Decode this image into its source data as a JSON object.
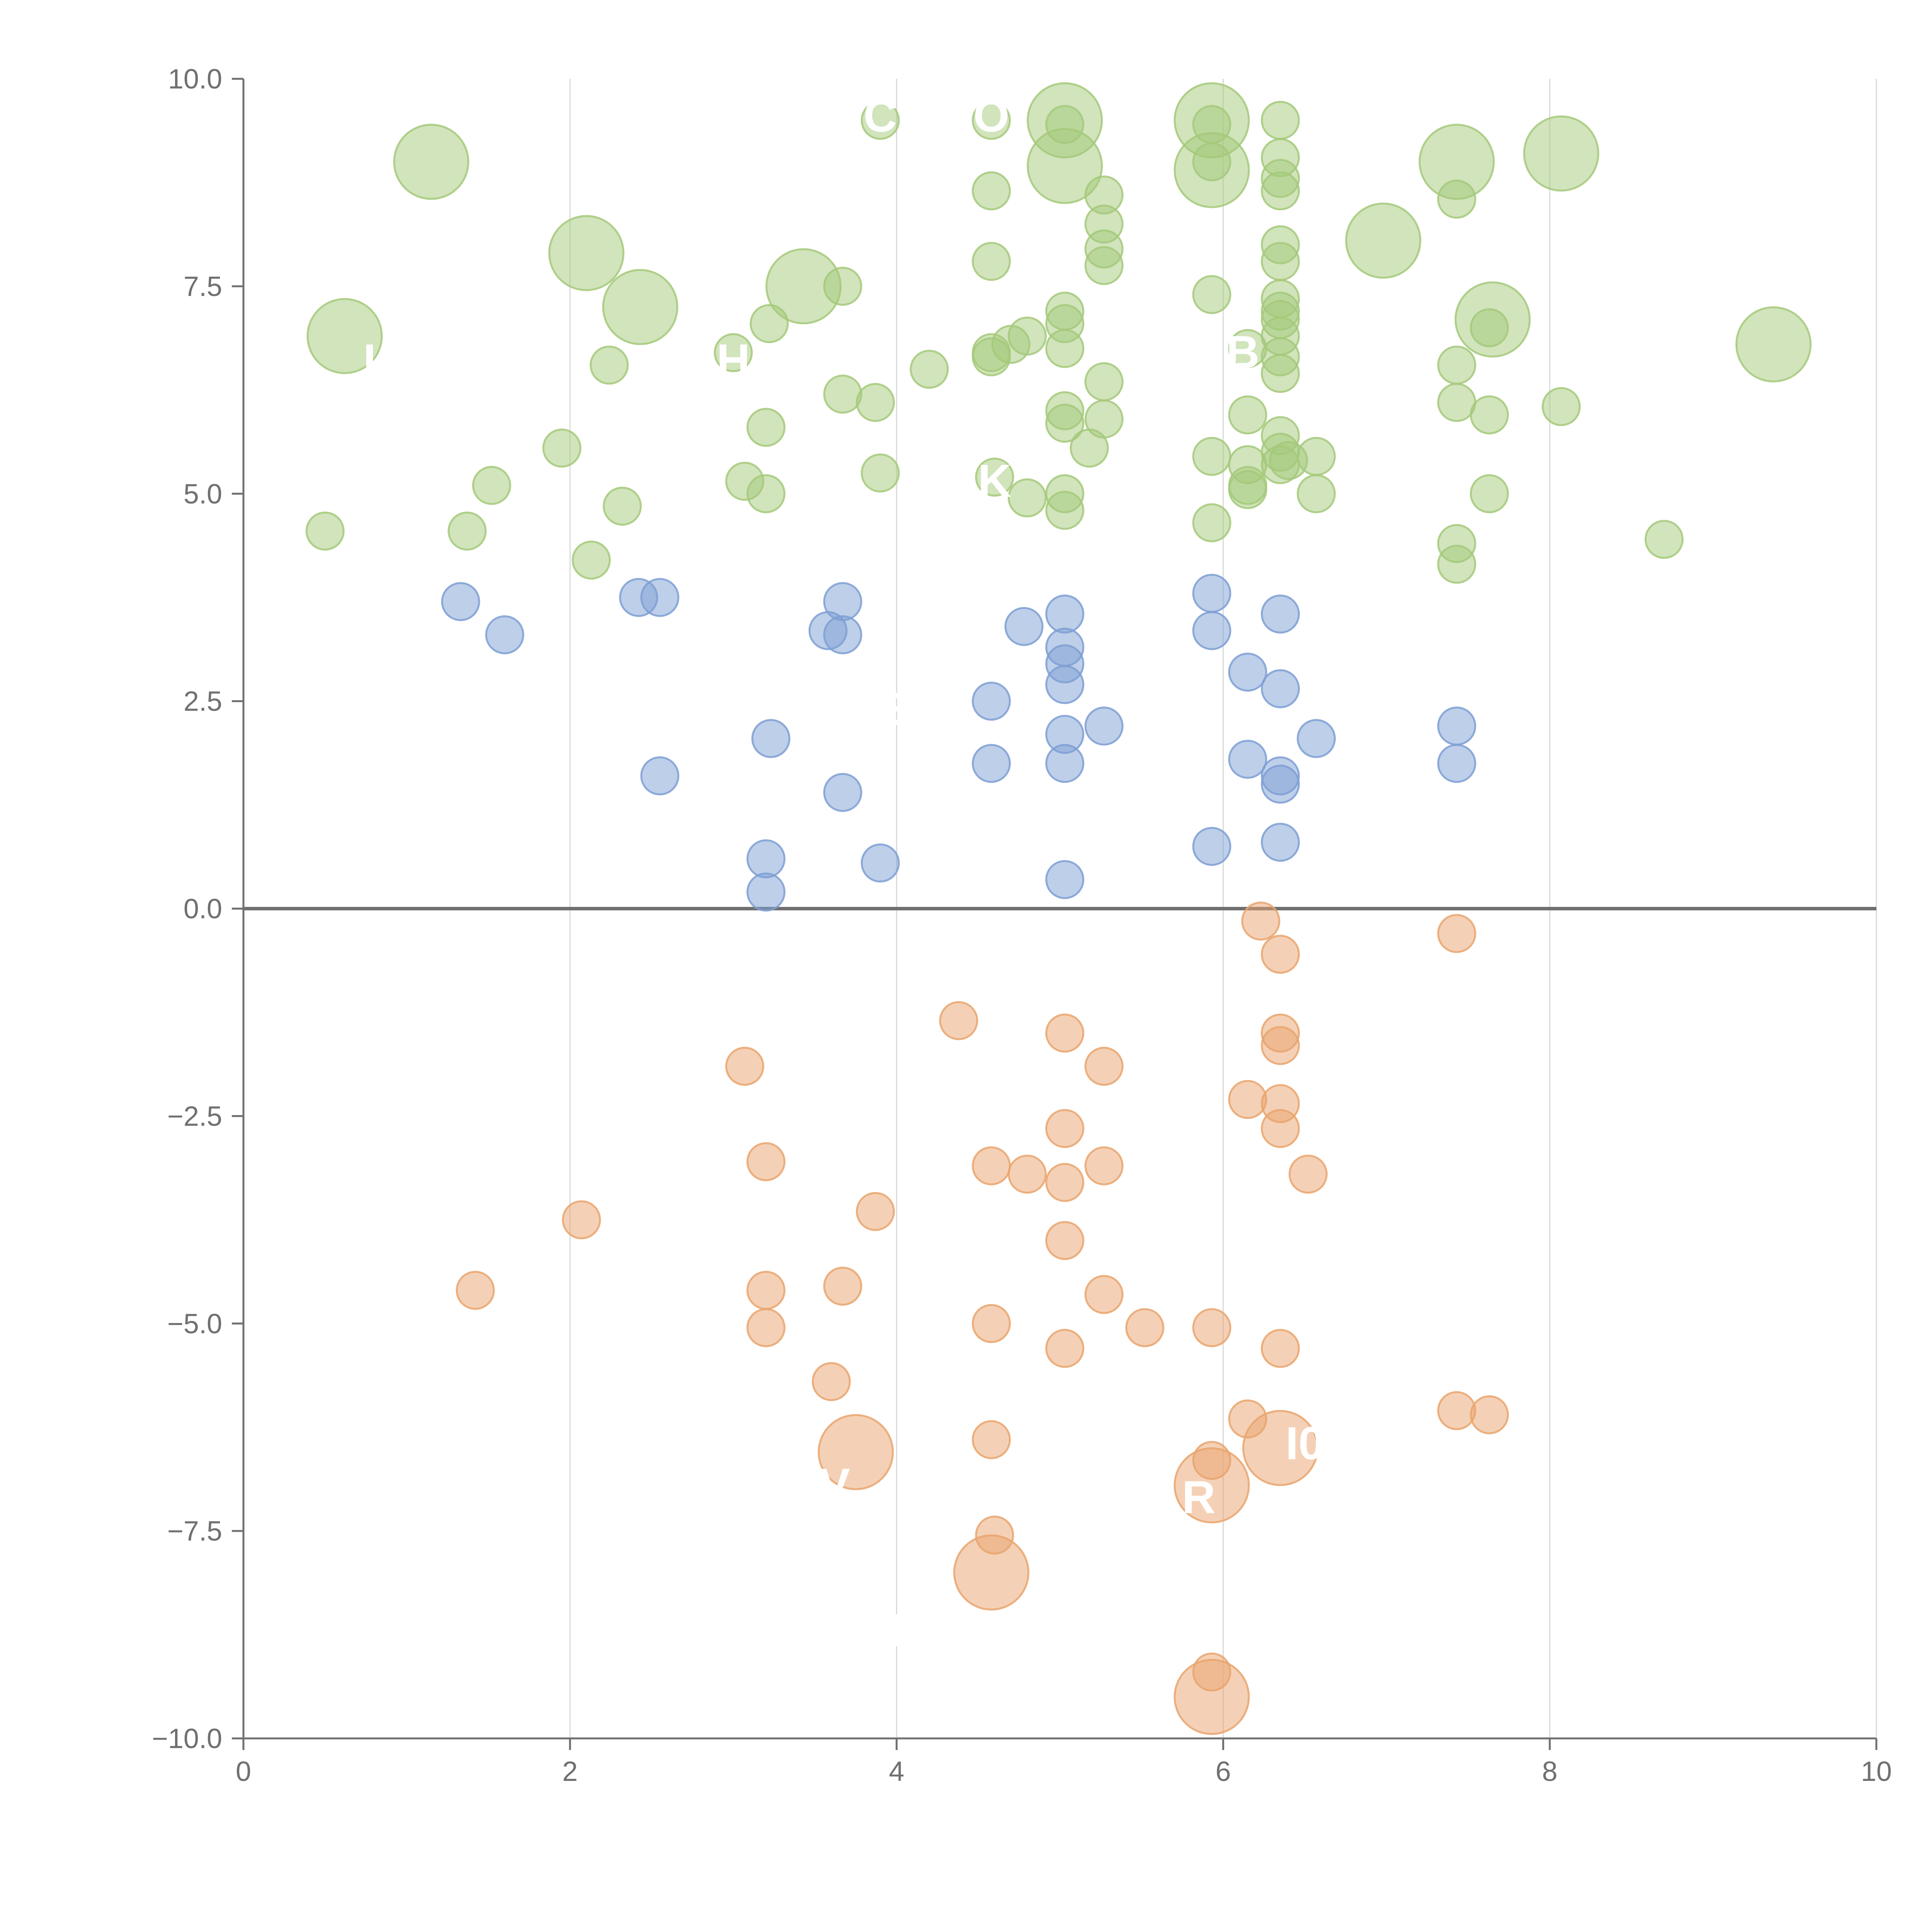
{
  "chart_data": {
    "type": "scatter",
    "subtype": "bubble",
    "title": "",
    "xlabel": "",
    "ylabel": "",
    "xlim": [
      0,
      10
    ],
    "ylim": [
      -10,
      10
    ],
    "grid": "vertical",
    "zero_line": true,
    "x_ticks": [
      "0",
      "2",
      "4",
      "6",
      "8",
      "10"
    ],
    "y_ticks": [
      "10.0",
      "7.5",
      "5.0",
      "2.5",
      "0.0",
      "−2.5",
      "−5.0",
      "−7.5",
      "−10.0"
    ],
    "colors": {
      "green": "#a4c97a",
      "blue": "#7e9fd4",
      "orange": "#e9a46d",
      "axis": "#707070",
      "grid": "#d9d9d9",
      "zero_line": "#707070",
      "label": "#ffffff"
    },
    "series": [
      {
        "name": "green",
        "color": "#a4c97a",
        "points": [
          [
            0.5,
            4.55,
            1
          ],
          [
            1.37,
            4.55,
            1
          ],
          [
            1.52,
            5.1,
            1
          ],
          [
            2.13,
            4.2,
            1
          ],
          [
            1.95,
            5.55,
            1
          ],
          [
            2.32,
            4.85,
            1
          ],
          [
            2.24,
            6.55,
            1
          ],
          [
            3.07,
            5.15,
            1
          ],
          [
            3.2,
            5.0,
            1
          ],
          [
            3.2,
            5.8,
            1
          ],
          [
            3.0,
            6.7,
            1
          ],
          [
            3.22,
            7.05,
            1
          ],
          [
            3.67,
            7.5,
            1
          ],
          [
            3.67,
            6.2,
            1
          ],
          [
            3.87,
            6.1,
            1
          ],
          [
            3.9,
            5.25,
            1
          ],
          [
            3.9,
            9.5,
            1
          ],
          [
            4.2,
            6.5,
            1
          ],
          [
            4.58,
            9.5,
            1
          ],
          [
            4.58,
            8.65,
            1
          ],
          [
            4.58,
            7.8,
            1
          ],
          [
            4.58,
            6.7,
            1
          ],
          [
            4.58,
            6.65,
            1
          ],
          [
            4.6,
            5.2,
            1
          ],
          [
            4.7,
            6.8,
            1
          ],
          [
            4.8,
            6.9,
            1
          ],
          [
            4.8,
            4.95,
            1
          ],
          [
            5.03,
            9.45,
            1
          ],
          [
            5.03,
            7.2,
            1
          ],
          [
            5.03,
            7.05,
            1
          ],
          [
            5.03,
            6.75,
            1
          ],
          [
            5.03,
            6.0,
            1
          ],
          [
            5.03,
            5.85,
            1
          ],
          [
            5.03,
            5.0,
            1
          ],
          [
            5.03,
            4.8,
            1
          ],
          [
            5.18,
            5.55,
            1
          ],
          [
            5.27,
            8.6,
            1
          ],
          [
            5.27,
            8.25,
            1
          ],
          [
            5.27,
            7.95,
            1
          ],
          [
            5.27,
            7.75,
            1
          ],
          [
            5.27,
            6.35,
            1
          ],
          [
            5.27,
            5.9,
            1
          ],
          [
            5.93,
            9.45,
            1
          ],
          [
            5.93,
            9.0,
            1
          ],
          [
            5.93,
            7.4,
            1
          ],
          [
            5.93,
            5.45,
            1
          ],
          [
            5.93,
            4.65,
            1
          ],
          [
            6.15,
            6.75,
            1
          ],
          [
            6.15,
            5.95,
            1
          ],
          [
            6.15,
            5.35,
            1
          ],
          [
            6.15,
            5.1,
            1
          ],
          [
            6.15,
            5.05,
            1
          ],
          [
            6.35,
            9.5,
            1
          ],
          [
            6.35,
            9.05,
            1
          ],
          [
            6.35,
            8.8,
            1
          ],
          [
            6.35,
            8.65,
            1
          ],
          [
            6.35,
            8.0,
            1
          ],
          [
            6.35,
            7.8,
            1
          ],
          [
            6.35,
            7.35,
            1
          ],
          [
            6.35,
            7.2,
            1
          ],
          [
            6.35,
            7.1,
            1
          ],
          [
            6.35,
            6.9,
            1
          ],
          [
            6.35,
            6.65,
            1
          ],
          [
            6.35,
            6.45,
            1
          ],
          [
            6.35,
            5.7,
            1
          ],
          [
            6.35,
            5.5,
            1
          ],
          [
            6.35,
            5.35,
            1
          ],
          [
            6.4,
            5.4,
            1
          ],
          [
            6.57,
            5.45,
            1
          ],
          [
            6.57,
            5.0,
            1
          ],
          [
            7.43,
            8.55,
            1
          ],
          [
            7.43,
            6.55,
            1
          ],
          [
            7.43,
            6.1,
            1
          ],
          [
            7.43,
            4.4,
            1
          ],
          [
            7.43,
            4.15,
            1
          ],
          [
            7.63,
            7.0,
            1
          ],
          [
            7.63,
            5.95,
            1
          ],
          [
            7.63,
            5.0,
            1
          ],
          [
            8.07,
            6.05,
            1
          ],
          [
            8.7,
            4.45,
            1
          ],
          [
            0.62,
            6.9,
            2
          ],
          [
            1.15,
            9.0,
            2
          ],
          [
            2.1,
            7.9,
            2
          ],
          [
            2.43,
            7.25,
            2
          ],
          [
            3.43,
            7.5,
            2
          ],
          [
            5.03,
            9.5,
            2
          ],
          [
            5.03,
            8.95,
            2
          ],
          [
            5.93,
            9.5,
            2
          ],
          [
            5.93,
            8.9,
            2
          ],
          [
            6.98,
            8.05,
            2
          ],
          [
            7.43,
            9.0,
            2
          ],
          [
            7.65,
            7.1,
            2
          ],
          [
            8.07,
            9.1,
            2
          ],
          [
            9.37,
            6.8,
            2
          ]
        ]
      },
      {
        "name": "blue",
        "color": "#7e9fd4",
        "points": [
          [
            1.33,
            3.7,
            1
          ],
          [
            1.6,
            3.3,
            1
          ],
          [
            2.42,
            3.75,
            1
          ],
          [
            2.55,
            3.75,
            1
          ],
          [
            2.55,
            1.6,
            1
          ],
          [
            3.23,
            2.05,
            1
          ],
          [
            3.2,
            0.6,
            1
          ],
          [
            3.2,
            0.2,
            1
          ],
          [
            3.58,
            3.35,
            1
          ],
          [
            3.67,
            3.7,
            1
          ],
          [
            3.67,
            3.3,
            1
          ],
          [
            3.67,
            1.4,
            1
          ],
          [
            3.9,
            0.55,
            1
          ],
          [
            4.58,
            2.5,
            1
          ],
          [
            4.58,
            1.75,
            1
          ],
          [
            4.78,
            3.4,
            1
          ],
          [
            5.03,
            3.55,
            1
          ],
          [
            5.03,
            3.15,
            1
          ],
          [
            5.03,
            2.95,
            1
          ],
          [
            5.03,
            2.7,
            1
          ],
          [
            5.03,
            2.1,
            1
          ],
          [
            5.03,
            1.75,
            1
          ],
          [
            5.03,
            0.35,
            1
          ],
          [
            5.27,
            2.2,
            1
          ],
          [
            5.93,
            3.8,
            1
          ],
          [
            5.93,
            3.35,
            1
          ],
          [
            5.93,
            0.75,
            1
          ],
          [
            6.15,
            2.85,
            1
          ],
          [
            6.15,
            1.8,
            1
          ],
          [
            6.35,
            3.55,
            1
          ],
          [
            6.35,
            2.65,
            1
          ],
          [
            6.35,
            1.6,
            1
          ],
          [
            6.35,
            1.5,
            1
          ],
          [
            6.35,
            0.8,
            1
          ],
          [
            6.57,
            2.05,
            1
          ],
          [
            7.43,
            2.2,
            1
          ],
          [
            7.43,
            1.75,
            1
          ]
        ]
      },
      {
        "name": "orange",
        "color": "#e9a46d",
        "points": [
          [
            1.42,
            -4.6,
            1
          ],
          [
            2.07,
            -3.75,
            1
          ],
          [
            3.07,
            -1.9,
            1
          ],
          [
            3.2,
            -3.05,
            1
          ],
          [
            3.2,
            -4.6,
            1
          ],
          [
            3.2,
            -5.05,
            1
          ],
          [
            3.6,
            -5.7,
            1
          ],
          [
            3.67,
            -4.55,
            1
          ],
          [
            3.87,
            -3.65,
            1
          ],
          [
            4.38,
            -1.35,
            1
          ],
          [
            4.58,
            -3.1,
            1
          ],
          [
            4.58,
            -5.0,
            1
          ],
          [
            4.58,
            -6.4,
            1
          ],
          [
            4.6,
            -7.55,
            1
          ],
          [
            4.8,
            -3.2,
            1
          ],
          [
            5.03,
            -1.5,
            1
          ],
          [
            5.03,
            -2.65,
            1
          ],
          [
            5.03,
            -3.3,
            1
          ],
          [
            5.03,
            -4.0,
            1
          ],
          [
            5.03,
            -5.3,
            1
          ],
          [
            5.27,
            -1.9,
            1
          ],
          [
            5.27,
            -3.1,
            1
          ],
          [
            5.27,
            -4.65,
            1
          ],
          [
            5.52,
            -5.05,
            1
          ],
          [
            5.93,
            -5.05,
            1
          ],
          [
            5.93,
            -6.65,
            1
          ],
          [
            5.93,
            -9.2,
            1
          ],
          [
            6.15,
            -2.3,
            1
          ],
          [
            6.15,
            -6.15,
            1
          ],
          [
            6.23,
            -0.15,
            1
          ],
          [
            6.35,
            -0.55,
            1
          ],
          [
            6.35,
            -1.5,
            1
          ],
          [
            6.35,
            -1.65,
            1
          ],
          [
            6.35,
            -2.35,
            1
          ],
          [
            6.35,
            -2.65,
            1
          ],
          [
            6.35,
            -5.3,
            1
          ],
          [
            6.52,
            -3.2,
            1
          ],
          [
            7.43,
            -0.3,
            1
          ],
          [
            7.43,
            -6.05,
            1
          ],
          [
            7.63,
            -6.1,
            1
          ],
          [
            3.75,
            -6.55,
            2
          ],
          [
            4.58,
            -8.0,
            2
          ],
          [
            5.93,
            -6.95,
            2
          ],
          [
            5.93,
            -9.5,
            2
          ],
          [
            6.35,
            -6.5,
            2
          ]
        ]
      }
    ],
    "annotations": [
      {
        "text": "C",
        "x": 3.9,
        "y": 9.55
      },
      {
        "text": "O",
        "x": 4.58,
        "y": 9.55
      },
      {
        "text": "L",
        "x": 0.82,
        "y": 6.6
      },
      {
        "text": "H",
        "x": 3.0,
        "y": 6.6
      },
      {
        "text": "B",
        "x": 6.12,
        "y": 6.7
      },
      {
        "text": "K",
        "x": 4.6,
        "y": 5.15
      },
      {
        "text": "E",
        "x": 3.97,
        "y": 2.4
      },
      {
        "text": "V",
        "x": 3.62,
        "y": -6.95
      },
      {
        "text": "R",
        "x": 5.85,
        "y": -7.1
      },
      {
        "text": "I0",
        "x": 6.5,
        "y": -6.45
      },
      {
        "text": "I",
        "x": 4.0,
        "y": -8.7
      }
    ]
  }
}
